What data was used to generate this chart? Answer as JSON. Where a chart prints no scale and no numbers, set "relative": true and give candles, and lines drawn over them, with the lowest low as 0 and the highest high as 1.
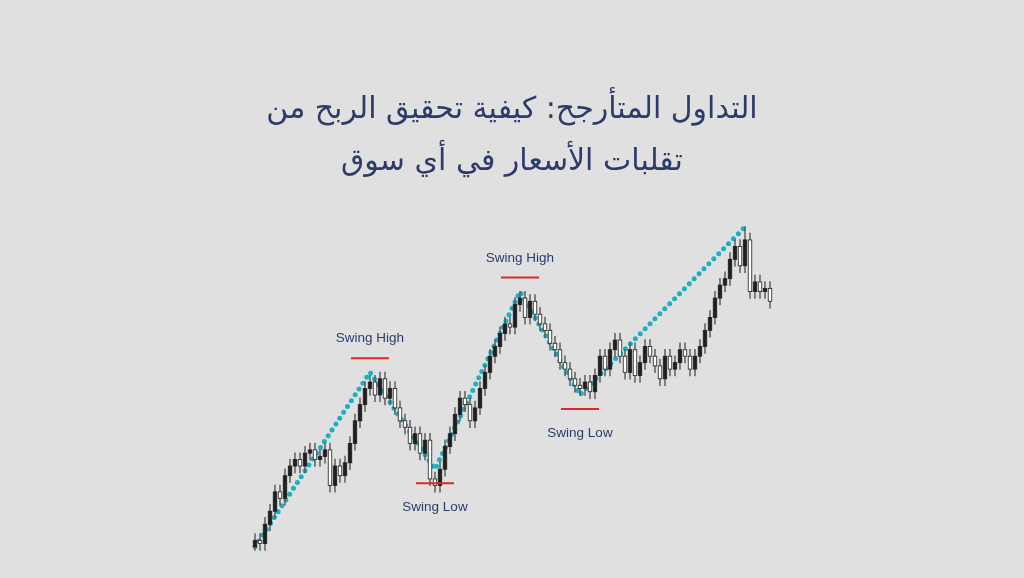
{
  "chart_data": {
    "type": "candlestick",
    "title": "التداول المتأرجح: كيفية تحقيق الربح من تقلبات الأسعار في أي سوق",
    "relative": true,
    "categories": [
      null,
      null,
      null,
      null,
      null,
      null,
      null,
      null,
      null,
      null,
      null,
      null,
      null,
      null,
      null,
      null,
      null,
      null,
      null,
      null,
      null,
      null,
      null,
      null,
      null,
      null,
      null,
      null,
      null,
      null,
      null,
      null,
      null,
      null,
      null,
      null,
      null,
      null,
      null,
      null,
      null,
      null,
      null,
      null,
      null,
      null,
      null,
      null,
      null,
      null,
      null,
      null,
      null,
      null,
      null,
      null,
      null,
      null,
      null,
      null,
      null,
      null,
      null,
      null,
      null,
      null,
      null,
      null,
      null,
      null,
      null,
      null,
      null,
      null,
      null,
      null,
      null,
      null,
      null,
      null,
      null,
      null,
      null,
      null,
      null,
      null,
      null,
      null,
      null,
      null,
      null,
      null,
      null,
      null,
      null,
      null,
      null,
      null,
      null,
      null,
      null,
      null,
      null,
      null
    ],
    "ohlc": [
      [
        0.01,
        0.05,
        0,
        0.03
      ],
      [
        0.03,
        0.05,
        0,
        0.02
      ],
      [
        0.02,
        0.1,
        0,
        0.08
      ],
      [
        0.08,
        0.14,
        0.06,
        0.12
      ],
      [
        0.12,
        0.2,
        0.1,
        0.18
      ],
      [
        0.18,
        0.2,
        0.14,
        0.16
      ],
      [
        0.16,
        0.25,
        0.14,
        0.23
      ],
      [
        0.23,
        0.28,
        0.21,
        0.26
      ],
      [
        0.26,
        0.3,
        0.24,
        0.28
      ],
      [
        0.28,
        0.3,
        0.24,
        0.26
      ],
      [
        0.26,
        0.32,
        0.24,
        0.3
      ],
      [
        0.3,
        0.33,
        0.28,
        0.31
      ],
      [
        0.31,
        0.33,
        0.26,
        0.28
      ],
      [
        0.28,
        0.31,
        0.26,
        0.29
      ],
      [
        0.29,
        0.33,
        0.27,
        0.31
      ],
      [
        0.31,
        0.33,
        0.18,
        0.2
      ],
      [
        0.2,
        0.28,
        0.18,
        0.26
      ],
      [
        0.26,
        0.28,
        0.21,
        0.23
      ],
      [
        0.23,
        0.29,
        0.21,
        0.27
      ],
      [
        0.27,
        0.35,
        0.25,
        0.33
      ],
      [
        0.33,
        0.42,
        0.31,
        0.4
      ],
      [
        0.4,
        0.47,
        0.38,
        0.45
      ],
      [
        0.45,
        0.52,
        0.43,
        0.5
      ],
      [
        0.5,
        0.54,
        0.48,
        0.52
      ],
      [
        0.52,
        0.54,
        0.46,
        0.48
      ],
      [
        0.48,
        0.55,
        0.46,
        0.53
      ],
      [
        0.53,
        0.55,
        0.45,
        0.47
      ],
      [
        0.47,
        0.52,
        0.45,
        0.5
      ],
      [
        0.5,
        0.52,
        0.42,
        0.44
      ],
      [
        0.44,
        0.46,
        0.38,
        0.4
      ],
      [
        0.4,
        0.42,
        0.36,
        0.38
      ],
      [
        0.38,
        0.4,
        0.31,
        0.33
      ],
      [
        0.33,
        0.38,
        0.31,
        0.36
      ],
      [
        0.36,
        0.38,
        0.28,
        0.3
      ],
      [
        0.3,
        0.36,
        0.28,
        0.34
      ],
      [
        0.34,
        0.36,
        0.2,
        0.22
      ],
      [
        0.22,
        0.24,
        0.18,
        0.2
      ],
      [
        0.2,
        0.27,
        0.18,
        0.25
      ],
      [
        0.25,
        0.34,
        0.23,
        0.32
      ],
      [
        0.32,
        0.38,
        0.3,
        0.36
      ],
      [
        0.36,
        0.44,
        0.34,
        0.42
      ],
      [
        0.42,
        0.49,
        0.4,
        0.47
      ],
      [
        0.47,
        0.49,
        0.43,
        0.45
      ],
      [
        0.45,
        0.47,
        0.38,
        0.4
      ],
      [
        0.4,
        0.46,
        0.38,
        0.44
      ],
      [
        0.44,
        0.52,
        0.42,
        0.5
      ],
      [
        0.5,
        0.57,
        0.48,
        0.55
      ],
      [
        0.55,
        0.62,
        0.53,
        0.6
      ],
      [
        0.6,
        0.65,
        0.58,
        0.63
      ],
      [
        0.63,
        0.69,
        0.61,
        0.67
      ],
      [
        0.67,
        0.72,
        0.65,
        0.7
      ],
      [
        0.7,
        0.72,
        0.67,
        0.69
      ],
      [
        0.69,
        0.78,
        0.67,
        0.76
      ],
      [
        0.76,
        0.8,
        0.74,
        0.78
      ],
      [
        0.78,
        0.8,
        0.7,
        0.72
      ],
      [
        0.72,
        0.79,
        0.7,
        0.77
      ],
      [
        0.77,
        0.79,
        0.71,
        0.73
      ],
      [
        0.73,
        0.75,
        0.68,
        0.7
      ],
      [
        0.7,
        0.72,
        0.66,
        0.68
      ],
      [
        0.68,
        0.7,
        0.62,
        0.64
      ],
      [
        0.64,
        0.66,
        0.6,
        0.62
      ],
      [
        0.62,
        0.64,
        0.56,
        0.58
      ],
      [
        0.58,
        0.6,
        0.54,
        0.56
      ],
      [
        0.56,
        0.58,
        0.51,
        0.53
      ],
      [
        0.53,
        0.55,
        0.49,
        0.51
      ],
      [
        0.51,
        0.53,
        0.48,
        0.5
      ],
      [
        0.5,
        0.54,
        0.48,
        0.52
      ],
      [
        0.52,
        0.54,
        0.47,
        0.49
      ],
      [
        0.49,
        0.56,
        0.47,
        0.54
      ],
      [
        0.54,
        0.62,
        0.52,
        0.6
      ],
      [
        0.6,
        0.62,
        0.54,
        0.56
      ],
      [
        0.56,
        0.64,
        0.54,
        0.62
      ],
      [
        0.62,
        0.67,
        0.6,
        0.65
      ],
      [
        0.65,
        0.67,
        0.58,
        0.6
      ],
      [
        0.6,
        0.62,
        0.53,
        0.55
      ],
      [
        0.55,
        0.64,
        0.53,
        0.62
      ],
      [
        0.62,
        0.64,
        0.52,
        0.54
      ],
      [
        0.54,
        0.6,
        0.52,
        0.58
      ],
      [
        0.58,
        0.65,
        0.56,
        0.63
      ],
      [
        0.63,
        0.65,
        0.58,
        0.6
      ],
      [
        0.6,
        0.62,
        0.55,
        0.57
      ],
      [
        0.57,
        0.59,
        0.51,
        0.53
      ],
      [
        0.53,
        0.62,
        0.51,
        0.6
      ],
      [
        0.6,
        0.62,
        0.54,
        0.56
      ],
      [
        0.56,
        0.6,
        0.54,
        0.58
      ],
      [
        0.58,
        0.64,
        0.56,
        0.62
      ],
      [
        0.62,
        0.64,
        0.58,
        0.6
      ],
      [
        0.6,
        0.62,
        0.54,
        0.56
      ],
      [
        0.56,
        0.62,
        0.54,
        0.6
      ],
      [
        0.6,
        0.65,
        0.58,
        0.63
      ],
      [
        0.63,
        0.7,
        0.61,
        0.68
      ],
      [
        0.68,
        0.74,
        0.66,
        0.72
      ],
      [
        0.72,
        0.8,
        0.7,
        0.78
      ],
      [
        0.78,
        0.84,
        0.76,
        0.82
      ],
      [
        0.82,
        0.86,
        0.8,
        0.84
      ],
      [
        0.84,
        0.92,
        0.82,
        0.9
      ],
      [
        0.9,
        0.96,
        0.88,
        0.94
      ],
      [
        0.94,
        0.96,
        0.86,
        0.88
      ],
      [
        0.88,
        1.0,
        0.86,
        0.96
      ],
      [
        0.96,
        0.98,
        0.78,
        0.8
      ],
      [
        0.8,
        0.85,
        0.78,
        0.83
      ],
      [
        0.83,
        0.85,
        0.78,
        0.8
      ],
      [
        0.8,
        0.83,
        0.78,
        0.81
      ],
      [
        0.81,
        0.83,
        0.75,
        0.77
      ]
    ],
    "series": [
      {
        "type": "line",
        "color": "#1bb0c4",
        "line_style": "dotted",
        "marker": "none",
        "values": [
          0.01,
          null,
          null,
          null,
          null,
          null,
          null,
          null,
          null,
          null,
          null,
          null,
          null,
          null,
          null,
          null,
          null,
          null,
          null,
          null,
          null,
          null,
          null,
          0.55,
          null,
          null,
          null,
          null,
          null,
          null,
          null,
          null,
          null,
          null,
          null,
          null,
          0.25,
          null,
          null,
          null,
          null,
          null,
          null,
          null,
          null,
          null,
          null,
          null,
          null,
          null,
          null,
          null,
          null,
          0.8,
          null,
          null,
          null,
          null,
          null,
          null,
          null,
          null,
          null,
          null,
          null,
          0.48,
          null,
          null,
          null,
          null,
          null,
          null,
          null,
          null,
          null,
          null,
          null,
          null,
          null,
          null,
          null,
          null,
          null,
          null,
          null,
          null,
          null,
          null,
          null,
          null,
          null,
          null,
          null,
          null,
          null,
          null,
          null,
          null,
          1.0,
          null,
          null,
          null,
          null,
          null
        ]
      }
    ],
    "annotations": [
      {
        "text": "Swing High",
        "y": 0.55
      },
      {
        "text": "Swing Low",
        "y": 0.25
      },
      {
        "text": "Swing High",
        "y": 0.8
      },
      {
        "text": "Swing Low",
        "y": 0.48
      }
    ]
  }
}
